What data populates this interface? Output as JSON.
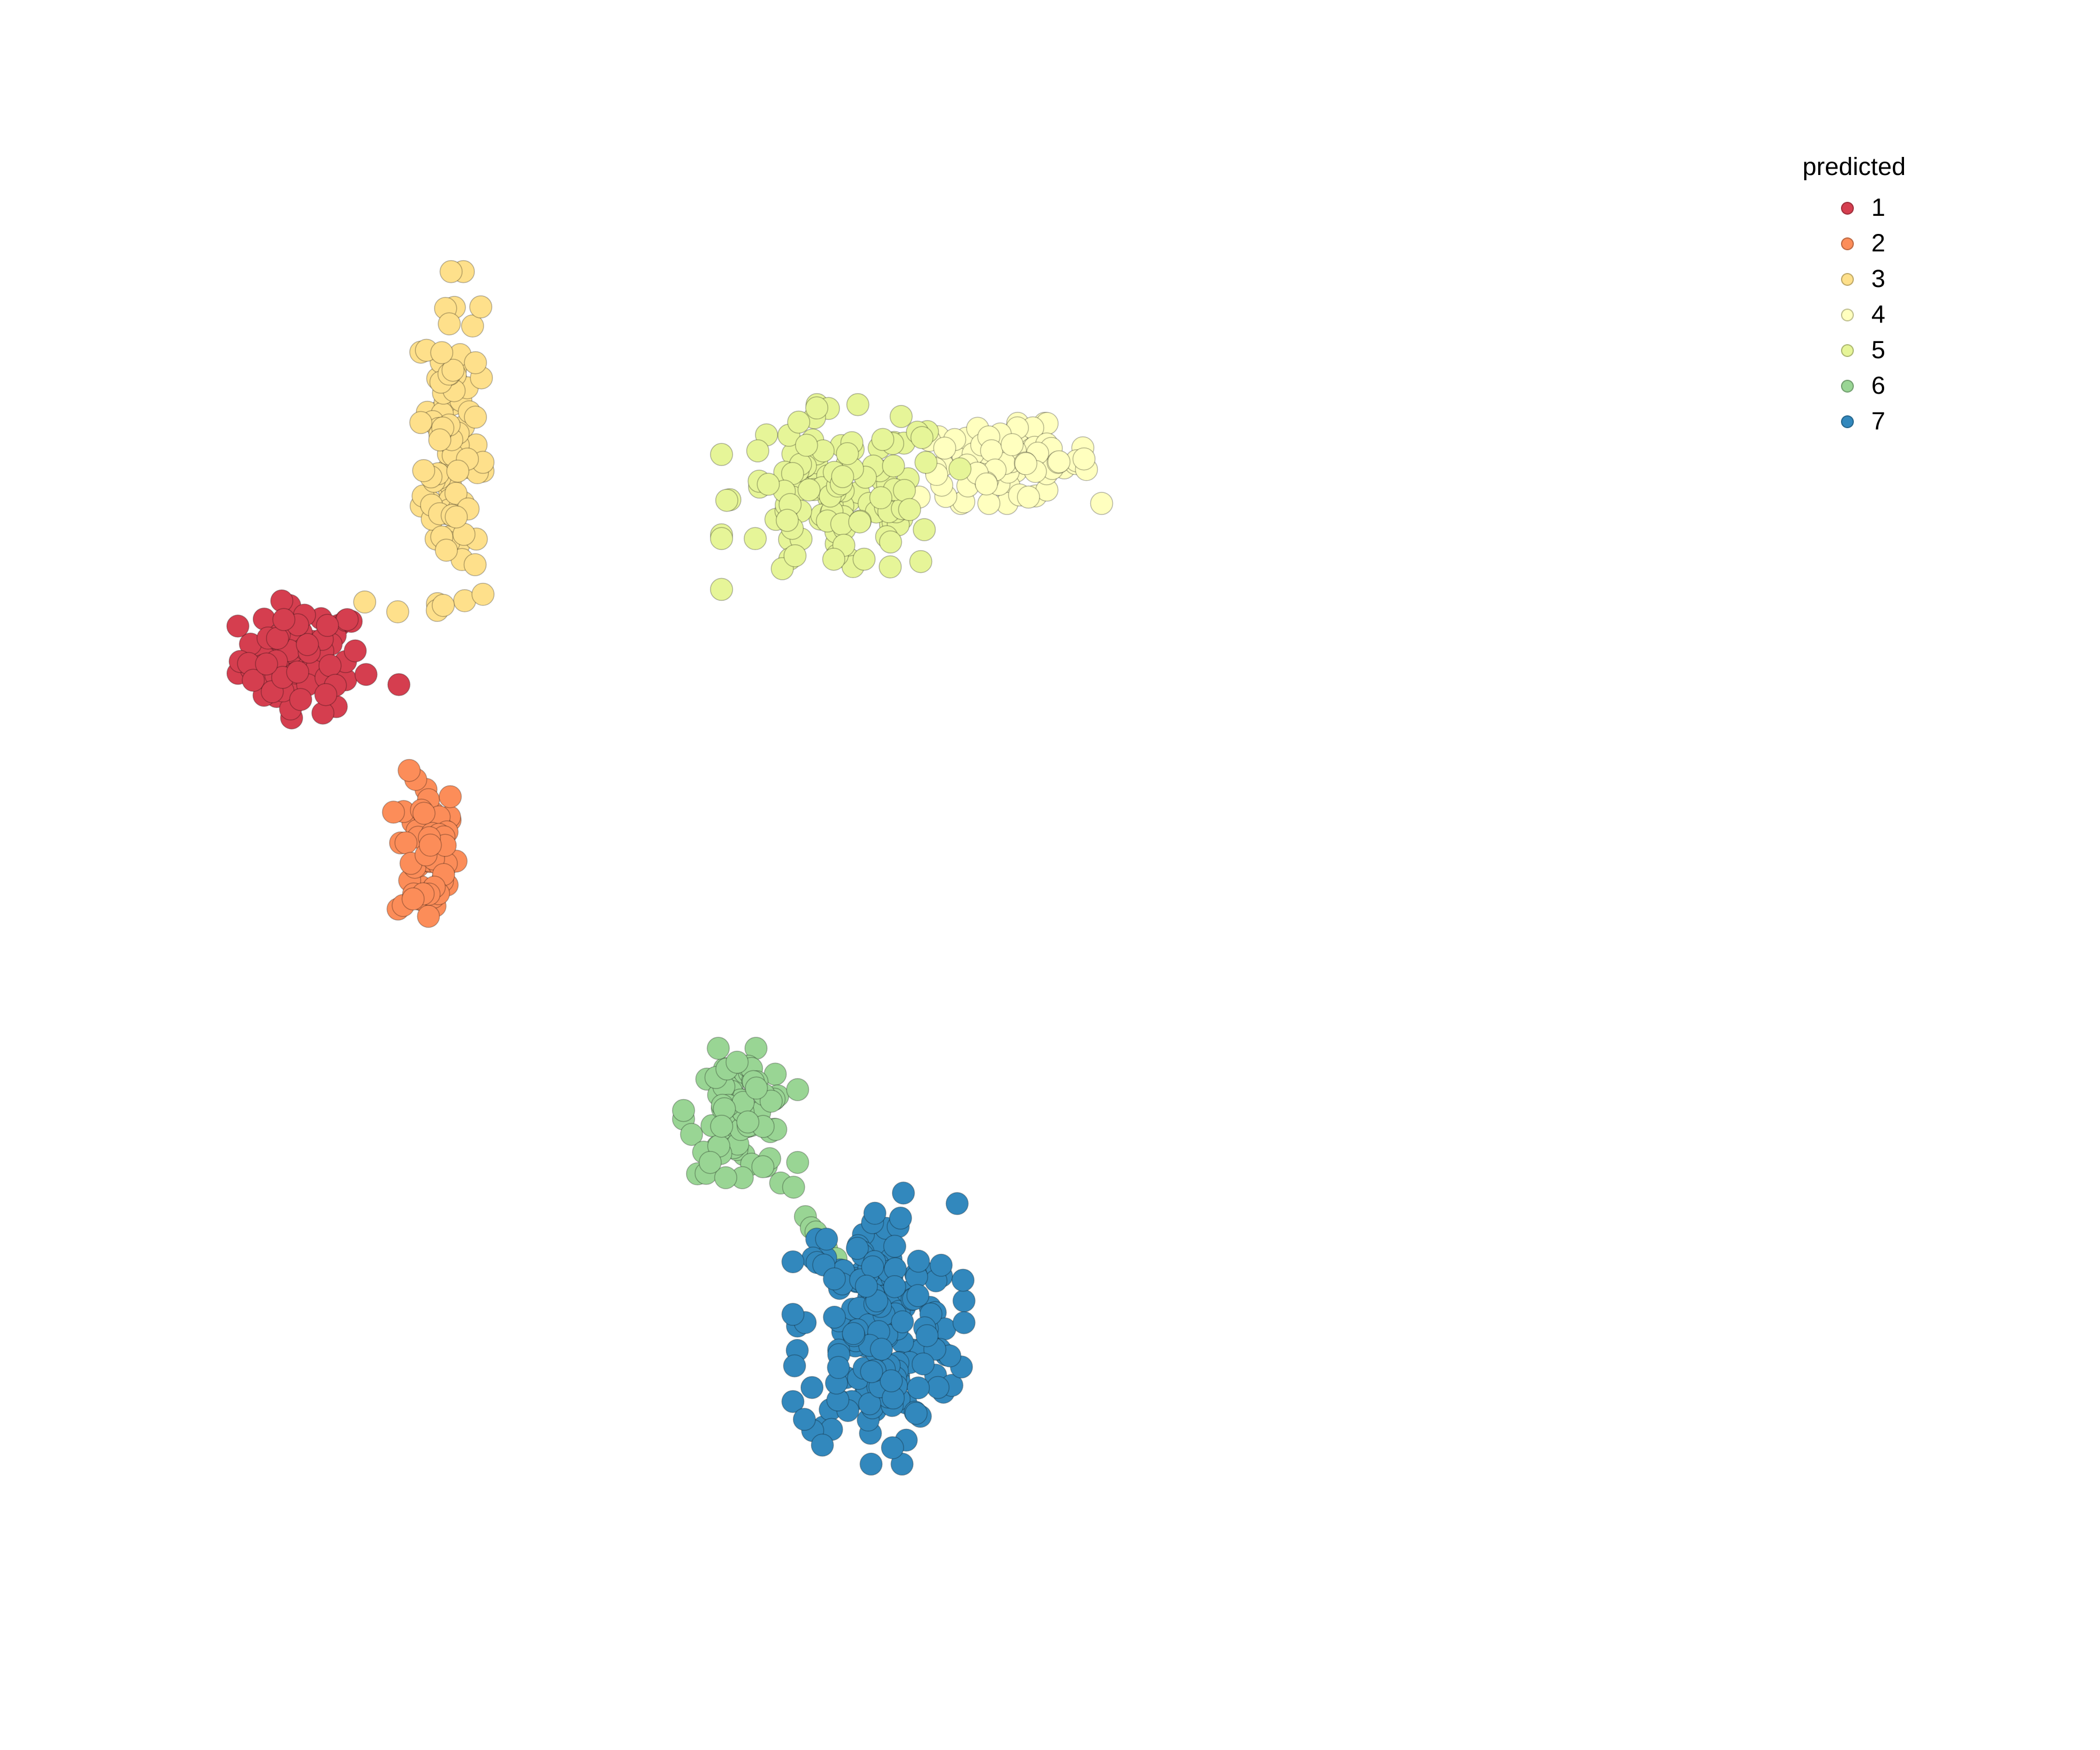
{
  "chart_data": {
    "type": "scatter",
    "title": "",
    "xlabel": "",
    "ylabel": "",
    "xlim": [
      0,
      100
    ],
    "ylim": [
      0,
      100
    ],
    "grid": false,
    "axes_visible": false,
    "legend": {
      "title": "predicted",
      "placement": "right",
      "entries": [
        {
          "label": "1",
          "color": "#D53E4F"
        },
        {
          "label": "2",
          "color": "#FC8D59"
        },
        {
          "label": "3",
          "color": "#FEE08B"
        },
        {
          "label": "4",
          "color": "#FFFFBF"
        },
        {
          "label": "5",
          "color": "#E6F598"
        },
        {
          "label": "6",
          "color": "#99D594"
        },
        {
          "label": "7",
          "color": "#3288BD"
        }
      ]
    },
    "series": [
      {
        "name": "1",
        "color": "#D53E4F",
        "n": 80,
        "center": [
          10.7,
          65.4
        ],
        "spread": [
          2.6,
          1.9
        ],
        "extra": [
          [
            19.0,
            63.6
          ]
        ]
      },
      {
        "name": "2",
        "color": "#FC8D59",
        "n": 70,
        "center": [
          21.4,
          51.6
        ],
        "spread": [
          1.3,
          2.7
        ],
        "extra": []
      },
      {
        "name": "3",
        "color": "#FEE08B",
        "n": 110,
        "center": [
          23.5,
          81.0
        ],
        "spread": [
          1.2,
          5.5
        ],
        "extra": [
          [
            16.1,
            69.5
          ],
          [
            18.9,
            68.8
          ]
        ]
      },
      {
        "name": "4",
        "color": "#FFFFBF",
        "n": 90,
        "center": [
          70.5,
          79.4
        ],
        "spread": [
          3.7,
          1.3
        ],
        "extra": []
      },
      {
        "name": "5",
        "color": "#E6F598",
        "n": 130,
        "center": [
          56.5,
          77.0
        ],
        "spread": [
          4.6,
          3.0
        ],
        "extra": []
      },
      {
        "name": "6",
        "color": "#99D594",
        "n": 75,
        "center": [
          48.0,
          33.0
        ],
        "spread": [
          2.2,
          2.1
        ],
        "extra": [
          [
            51.4,
            28.0
          ],
          [
            52.5,
            27.7
          ],
          [
            53.5,
            25.6
          ],
          [
            54.0,
            24.8
          ],
          [
            54.4,
            24.5
          ],
          [
            55.3,
            23.3
          ],
          [
            56.1,
            22.6
          ]
        ]
      },
      {
        "name": "7",
        "color": "#3288BD",
        "n": 200,
        "center": [
          59.7,
          17.6
        ],
        "spread": [
          3.3,
          4.4
        ],
        "extra": []
      }
    ]
  }
}
